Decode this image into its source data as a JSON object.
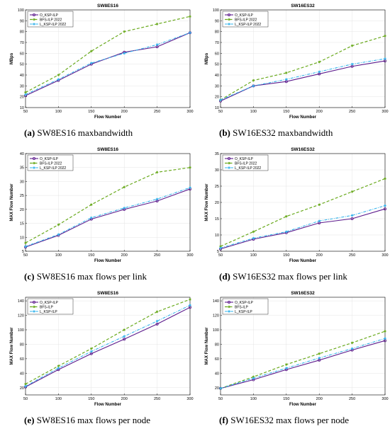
{
  "colors": {
    "O_KSP-ILP": "#5c1a8c",
    "BFS-ILP": "#6aaa1e",
    "L_KSP-ILP": "#36b4ec",
    "axis": "#000000",
    "grid": "#e4e4e4"
  },
  "chart_data": [
    {
      "id": "a",
      "type": "line",
      "title": "SW8ES16",
      "xlabel": "Flow Number",
      "ylabel": "MBps",
      "x": [
        50,
        100,
        150,
        200,
        250,
        300
      ],
      "xlim": [
        50,
        300
      ],
      "ylim": [
        10,
        100
      ],
      "xticks": [
        50,
        100,
        150,
        200,
        250,
        300
      ],
      "yticks": [
        10,
        20,
        30,
        40,
        50,
        60,
        70,
        80,
        90,
        100
      ],
      "grid": true,
      "legend_position": "top-left",
      "series": [
        {
          "name": "O_KSP-ILP",
          "values": [
            21,
            35,
            50,
            61,
            66,
            79
          ]
        },
        {
          "name": "BFS-ILP 2022",
          "values": [
            24,
            40,
            62,
            80,
            87,
            94
          ]
        },
        {
          "name": "L_KSP-ILP 2022",
          "values": [
            22,
            36,
            51,
            60,
            68,
            79
          ]
        }
      ],
      "caption_letter": "(a)",
      "caption_text": "SW8ES16 maxbandwidth"
    },
    {
      "id": "b",
      "type": "line",
      "title": "SW16ES32",
      "xlabel": "Flow Number",
      "ylabel": "MBps",
      "x": [
        50,
        100,
        150,
        200,
        250,
        300
      ],
      "xlim": [
        50,
        300
      ],
      "ylim": [
        10,
        100
      ],
      "xticks": [
        50,
        100,
        150,
        200,
        250,
        300
      ],
      "yticks": [
        10,
        20,
        30,
        40,
        50,
        60,
        70,
        80,
        90,
        100
      ],
      "grid": true,
      "legend_position": "top-left",
      "series": [
        {
          "name": "O_KSP-ILP",
          "values": [
            16,
            30,
            34,
            41,
            48,
            53
          ]
        },
        {
          "name": "BFS-ILP 2022",
          "values": [
            17,
            35,
            42,
            52,
            67,
            76
          ]
        },
        {
          "name": "L_KSP-ILP 2022",
          "values": [
            17,
            30,
            36,
            43,
            50,
            55
          ]
        }
      ],
      "caption_letter": "(b)",
      "caption_text": "SW16ES32 maxbandwidth"
    },
    {
      "id": "c",
      "type": "line",
      "title": "SW8ES16",
      "xlabel": "Flow Number",
      "ylabel": "MAX Flow Number",
      "x": [
        50,
        100,
        150,
        200,
        250,
        300
      ],
      "xlim": [
        50,
        300
      ],
      "ylim": [
        5,
        40
      ],
      "xticks": [
        50,
        100,
        150,
        200,
        250,
        300
      ],
      "yticks": [
        5,
        10,
        15,
        20,
        25,
        30,
        35,
        40
      ],
      "grid": true,
      "legend_position": "top-left",
      "series": [
        {
          "name": "O_KSP-ILP",
          "values": [
            6.5,
            10.7,
            16.5,
            20,
            23,
            27.3
          ]
        },
        {
          "name": "BFS-ILP 2022",
          "values": [
            8,
            14.5,
            21.7,
            28,
            33.3,
            35
          ]
        },
        {
          "name": "L_KSP-ILP 2022",
          "values": [
            6.7,
            11,
            17,
            20.5,
            23.7,
            27.8
          ]
        }
      ],
      "caption_letter": "(c)",
      "caption_text": "SW8ES16 max flows per link"
    },
    {
      "id": "d",
      "type": "line",
      "title": "SW16ES32",
      "xlabel": "Flow Number",
      "ylabel": "MAX Flow Number",
      "x": [
        50,
        100,
        150,
        200,
        250,
        300
      ],
      "xlim": [
        50,
        300
      ],
      "ylim": [
        5,
        35
      ],
      "xticks": [
        50,
        100,
        150,
        200,
        250,
        300
      ],
      "yticks": [
        5,
        10,
        15,
        20,
        25,
        30,
        35
      ],
      "grid": true,
      "legend_position": "top-left",
      "series": [
        {
          "name": "O_KSP-ILP",
          "values": [
            5.7,
            8.7,
            10.7,
            13.7,
            15,
            18
          ]
        },
        {
          "name": "BFS-ILP 2022",
          "values": [
            6.5,
            11,
            15.7,
            19.3,
            23.3,
            27.3
          ]
        },
        {
          "name": "L_KSP-ILP 2022",
          "values": [
            6,
            9,
            11,
            14.3,
            16,
            19
          ]
        }
      ],
      "caption_letter": "(d)",
      "caption_text": "SW16ES32 max flows per link"
    },
    {
      "id": "e",
      "type": "line",
      "title": "SW8ES16",
      "xlabel": "Flow Number",
      "ylabel": "MAX Flow Number",
      "x": [
        50,
        100,
        150,
        200,
        250,
        300
      ],
      "xlim": [
        50,
        300
      ],
      "ylim": [
        10,
        145
      ],
      "xticks": [
        50,
        100,
        150,
        200,
        250,
        300
      ],
      "yticks": [
        20,
        40,
        60,
        80,
        100,
        120,
        140
      ],
      "grid": true,
      "legend_position": "top-left",
      "series": [
        {
          "name": "O_KSP-ILP",
          "values": [
            21,
            45,
            67,
            87,
            108,
            131
          ]
        },
        {
          "name": "BFS-ILP",
          "values": [
            25,
            50,
            74,
            100,
            125,
            142
          ]
        },
        {
          "name": "L_KSP-ILP",
          "values": [
            22,
            47,
            70,
            91,
            112,
            134
          ]
        }
      ],
      "caption_letter": "(e)",
      "caption_text": "SW8ES16 max flows per node"
    },
    {
      "id": "f",
      "type": "line",
      "title": "SW16ES32",
      "xlabel": "Flow Number",
      "ylabel": "MAX Flow Number",
      "x": [
        50,
        100,
        150,
        200,
        250,
        300
      ],
      "xlim": [
        50,
        300
      ],
      "ylim": [
        10,
        145
      ],
      "xticks": [
        50,
        100,
        150,
        200,
        250,
        300
      ],
      "yticks": [
        20,
        40,
        60,
        80,
        100,
        120,
        140
      ],
      "grid": true,
      "legend_position": "top-left",
      "series": [
        {
          "name": "O_KSP-ILP",
          "values": [
            19,
            31,
            45,
            58,
            72,
            85
          ]
        },
        {
          "name": "BFS-ILP",
          "values": [
            19,
            35,
            52,
            67,
            82,
            98
          ]
        },
        {
          "name": "L_KSP-ILP",
          "values": [
            19,
            33,
            47,
            61,
            74,
            88
          ]
        }
      ],
      "caption_letter": "(f)",
      "caption_text": "SW16ES32 max flows per node"
    }
  ]
}
